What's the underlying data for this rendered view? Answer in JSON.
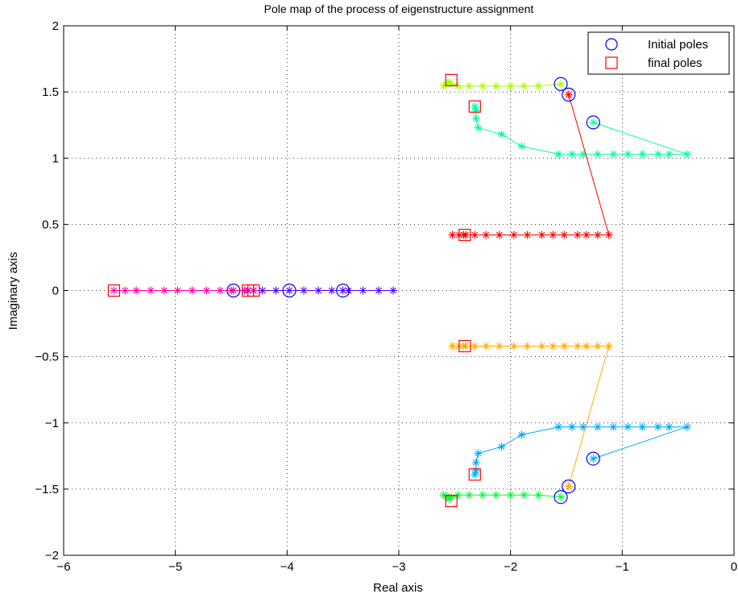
{
  "chart_data": {
    "type": "scatter",
    "title": "Pole map of the process of eigenstructure assignment",
    "xlabel": "Real axis",
    "ylabel": "Imaginary axis",
    "xlim": [
      -6,
      0
    ],
    "ylim": [
      -2,
      2
    ],
    "xticks": [
      -6,
      -5,
      -4,
      -3,
      -2,
      -1,
      0
    ],
    "yticks": [
      -2,
      -1.5,
      -1,
      -0.5,
      0,
      0.5,
      1,
      1.5,
      2
    ],
    "xtick_labels": [
      "−6",
      "−5",
      "−4",
      "−3",
      "−2",
      "−1",
      "0"
    ],
    "ytick_labels": [
      "−2",
      "−1.5",
      "−1",
      "−0.5",
      "0",
      "0.5",
      "1",
      "1.5",
      "2"
    ],
    "grid": true,
    "legend_position": "top-right",
    "legend": [
      {
        "label": "Initial poles",
        "marker": "circle",
        "color": "#0000ff"
      },
      {
        "label": "final poles",
        "marker": "square",
        "color": "#ff0000"
      }
    ],
    "series": [
      {
        "color": "#a6ff00",
        "points": [
          [
            -1.55,
            1.56
          ],
          [
            -1.75,
            1.545
          ],
          [
            -1.88,
            1.545
          ],
          [
            -2.0,
            1.545
          ],
          [
            -2.13,
            1.545
          ],
          [
            -2.25,
            1.545
          ],
          [
            -2.37,
            1.545
          ],
          [
            -2.47,
            1.545
          ],
          [
            -2.53,
            1.56
          ],
          [
            -2.55,
            1.575
          ],
          [
            -2.57,
            1.555
          ],
          [
            -2.6,
            1.545
          ]
        ]
      },
      {
        "color": "#00ff33",
        "points": [
          [
            -1.55,
            -1.56
          ],
          [
            -1.75,
            -1.545
          ],
          [
            -1.88,
            -1.545
          ],
          [
            -2.0,
            -1.545
          ],
          [
            -2.13,
            -1.545
          ],
          [
            -2.25,
            -1.545
          ],
          [
            -2.37,
            -1.545
          ],
          [
            -2.47,
            -1.545
          ],
          [
            -2.53,
            -1.56
          ],
          [
            -2.55,
            -1.575
          ],
          [
            -2.57,
            -1.555
          ],
          [
            -2.6,
            -1.545
          ]
        ]
      },
      {
        "color": "#00ff99",
        "points": [
          [
            -1.26,
            1.27
          ],
          [
            -0.42,
            1.03
          ],
          [
            -0.58,
            1.03
          ],
          [
            -0.68,
            1.03
          ],
          [
            -0.82,
            1.03
          ],
          [
            -0.95,
            1.03
          ],
          [
            -1.08,
            1.03
          ],
          [
            -1.22,
            1.03
          ],
          [
            -1.35,
            1.03
          ],
          [
            -1.45,
            1.03
          ],
          [
            -1.57,
            1.03
          ],
          [
            -1.9,
            1.09
          ],
          [
            -2.08,
            1.18
          ],
          [
            -2.29,
            1.23
          ],
          [
            -2.31,
            1.3
          ],
          [
            -2.31,
            1.36
          ],
          [
            -2.32,
            1.39
          ]
        ]
      },
      {
        "color": "#00aaff",
        "points": [
          [
            -1.26,
            -1.27
          ],
          [
            -0.42,
            -1.03
          ],
          [
            -0.58,
            -1.03
          ],
          [
            -0.68,
            -1.03
          ],
          [
            -0.82,
            -1.03
          ],
          [
            -0.95,
            -1.03
          ],
          [
            -1.08,
            -1.03
          ],
          [
            -1.22,
            -1.03
          ],
          [
            -1.35,
            -1.03
          ],
          [
            -1.45,
            -1.03
          ],
          [
            -1.57,
            -1.03
          ],
          [
            -1.9,
            -1.09
          ],
          [
            -2.08,
            -1.18
          ],
          [
            -2.29,
            -1.23
          ],
          [
            -2.31,
            -1.3
          ],
          [
            -2.31,
            -1.36
          ],
          [
            -2.32,
            -1.39
          ]
        ]
      },
      {
        "color": "#ff0000",
        "points": [
          [
            -1.48,
            1.48
          ],
          [
            -1.12,
            0.42
          ],
          [
            -1.22,
            0.42
          ],
          [
            -1.32,
            0.42
          ],
          [
            -1.4,
            0.42
          ],
          [
            -1.52,
            0.42
          ],
          [
            -1.62,
            0.42
          ],
          [
            -1.72,
            0.42
          ],
          [
            -1.85,
            0.42
          ],
          [
            -1.97,
            0.42
          ],
          [
            -2.1,
            0.42
          ],
          [
            -2.22,
            0.42
          ],
          [
            -2.32,
            0.42
          ],
          [
            -2.4,
            0.42
          ],
          [
            -2.42,
            0.42
          ],
          [
            -2.46,
            0.42
          ],
          [
            -2.52,
            0.42
          ]
        ]
      },
      {
        "color": "#ffaa00",
        "points": [
          [
            -1.48,
            -1.48
          ],
          [
            -1.12,
            -0.42
          ],
          [
            -1.22,
            -0.42
          ],
          [
            -1.32,
            -0.42
          ],
          [
            -1.4,
            -0.42
          ],
          [
            -1.52,
            -0.42
          ],
          [
            -1.62,
            -0.42
          ],
          [
            -1.72,
            -0.42
          ],
          [
            -1.85,
            -0.42
          ],
          [
            -1.97,
            -0.42
          ],
          [
            -2.1,
            -0.42
          ],
          [
            -2.22,
            -0.42
          ],
          [
            -2.32,
            -0.42
          ],
          [
            -2.4,
            -0.42
          ],
          [
            -2.42,
            -0.42
          ],
          [
            -2.46,
            -0.42
          ],
          [
            -2.52,
            -0.42
          ]
        ]
      },
      {
        "color": "#5500ff",
        "points": [
          [
            -3.5,
            0
          ],
          [
            -3.05,
            0
          ],
          [
            -3.18,
            0
          ],
          [
            -3.32,
            0
          ],
          [
            -3.45,
            0
          ],
          [
            -3.6,
            0
          ],
          [
            -3.72,
            0
          ],
          [
            -3.85,
            0
          ],
          [
            -3.98,
            0
          ],
          [
            -4.1,
            0
          ],
          [
            -4.22,
            0
          ],
          [
            -4.3,
            0
          ],
          [
            -4.35,
            0
          ]
        ]
      },
      {
        "color": "#ff00aa",
        "points": [
          [
            -4.48,
            0
          ],
          [
            -4.38,
            0
          ],
          [
            -4.3,
            0
          ],
          [
            -4.5,
            0
          ],
          [
            -4.6,
            0
          ],
          [
            -4.72,
            0
          ],
          [
            -4.85,
            0
          ],
          [
            -4.98,
            0
          ],
          [
            -5.1,
            0
          ],
          [
            -5.22,
            0
          ],
          [
            -5.35,
            0
          ],
          [
            -5.45,
            0
          ],
          [
            -5.55,
            0
          ]
        ]
      }
    ],
    "initial_poles": [
      [
        -1.55,
        1.56
      ],
      [
        -1.48,
        1.48
      ],
      [
        -1.26,
        1.27
      ],
      [
        -1.55,
        -1.56
      ],
      [
        -1.48,
        -1.48
      ],
      [
        -1.26,
        -1.27
      ],
      [
        -3.5,
        0
      ],
      [
        -3.98,
        0
      ],
      [
        -4.48,
        0
      ]
    ],
    "final_poles": [
      [
        -2.53,
        1.59
      ],
      [
        -2.32,
        1.39
      ],
      [
        -2.41,
        0.42
      ],
      [
        -2.53,
        -1.59
      ],
      [
        -2.32,
        -1.39
      ],
      [
        -2.41,
        -0.42
      ],
      [
        -4.35,
        0
      ],
      [
        -4.3,
        0
      ],
      [
        -5.55,
        0
      ]
    ]
  }
}
